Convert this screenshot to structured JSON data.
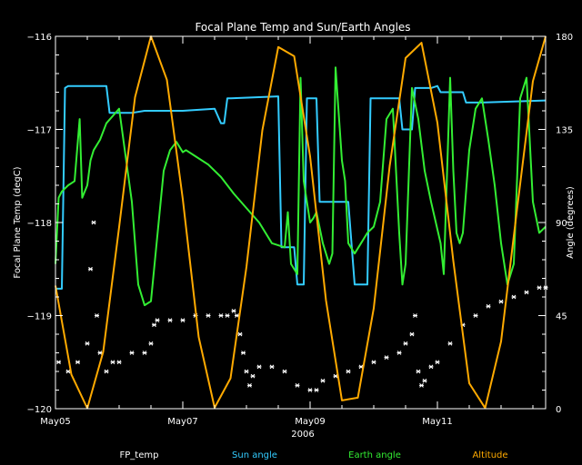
{
  "chart_data": {
    "type": "line",
    "title": "Focal Plane Temp and Sun/Earth Angles",
    "xlabel": "2006",
    "ylabel_left": "Focal Plane Temp (degC)",
    "ylabel_right": "Angle (degrees)",
    "x_unit": "days since May05 00:00",
    "xlim": [
      0,
      7.7
    ],
    "ylim_left": [
      -120,
      -116
    ],
    "ylim_right": [
      0,
      180
    ],
    "x_ticks": [
      {
        "x": 0,
        "label": "May05"
      },
      {
        "x": 2,
        "label": "May07"
      },
      {
        "x": 4,
        "label": "May09"
      },
      {
        "x": 6,
        "label": "May11"
      }
    ],
    "y_ticks_left": [
      {
        "y": -116,
        "label": "−116"
      },
      {
        "y": -117,
        "label": "−117"
      },
      {
        "y": -118,
        "label": "−118"
      },
      {
        "y": -119,
        "label": "−119"
      },
      {
        "y": -120,
        "label": "−120"
      }
    ],
    "y_ticks_right": [
      {
        "y": 180,
        "label": "180"
      },
      {
        "y": 135,
        "label": "135"
      },
      {
        "y": 90,
        "label": "90"
      },
      {
        "y": 45,
        "label": "45"
      },
      {
        "y": 0,
        "label": "0"
      }
    ],
    "legend_position": "bottom",
    "series": [
      {
        "name": "FP_temp",
        "axis": "left",
        "style": "markers",
        "color": "#ffffff",
        "x": [
          0.05,
          0.2,
          0.35,
          0.5,
          0.55,
          0.6,
          0.65,
          0.7,
          0.8,
          0.9,
          1.0,
          1.2,
          1.4,
          1.5,
          1.55,
          1.6,
          1.8,
          2.0,
          2.2,
          2.4,
          2.6,
          2.7,
          2.8,
          2.85,
          2.9,
          2.95,
          3.0,
          3.05,
          3.1,
          3.2,
          3.4,
          3.6,
          3.8,
          4.0,
          4.1,
          4.2,
          4.4,
          4.6,
          4.8,
          5.0,
          5.2,
          5.4,
          5.5,
          5.6,
          5.65,
          5.7,
          5.75,
          5.8,
          5.9,
          6.0,
          6.2,
          6.4,
          6.6,
          6.8,
          7.0,
          7.2,
          7.4,
          7.6,
          7.7
        ],
        "y": [
          -119.5,
          -119.6,
          -119.5,
          -119.3,
          -118.5,
          -118.0,
          -119.0,
          -119.4,
          -119.6,
          -119.5,
          -119.5,
          -119.4,
          -119.4,
          -119.3,
          -119.1,
          -119.05,
          -119.05,
          -119.05,
          -119.0,
          -119.0,
          -119.0,
          -119.0,
          -118.95,
          -119.0,
          -119.2,
          -119.4,
          -119.6,
          -119.75,
          -119.65,
          -119.55,
          -119.55,
          -119.6,
          -119.75,
          -119.8,
          -119.8,
          -119.7,
          -119.65,
          -119.6,
          -119.55,
          -119.5,
          -119.45,
          -119.4,
          -119.3,
          -119.2,
          -119.0,
          -119.6,
          -119.75,
          -119.7,
          -119.55,
          -119.5,
          -119.3,
          -119.1,
          -119.0,
          -118.9,
          -118.85,
          -118.8,
          -118.75,
          -118.7,
          -118.7
        ]
      },
      {
        "name": "Sun angle",
        "axis": "right",
        "style": "line",
        "color": "#33ccff",
        "x": [
          0,
          0.1,
          0.15,
          0.2,
          0.8,
          0.85,
          1.2,
          1.4,
          1.6,
          2.0,
          2.5,
          2.6,
          2.65,
          2.7,
          2.75,
          3.5,
          3.55,
          3.75,
          3.8,
          3.9,
          3.95,
          4.1,
          4.15,
          4.6,
          4.7,
          4.9,
          4.95,
          5.4,
          5.45,
          5.6,
          5.65,
          5.9,
          6.0,
          6.05,
          6.4,
          6.45,
          6.7,
          7.7
        ],
        "y": [
          58,
          58,
          155,
          156,
          156,
          143,
          143,
          144,
          144,
          144,
          145,
          138,
          138,
          150,
          150,
          151,
          78,
          78,
          60,
          60,
          150,
          150,
          100,
          100,
          60,
          60,
          150,
          150,
          135,
          135,
          155,
          155,
          156,
          153,
          153,
          148,
          148,
          149
        ]
      },
      {
        "name": "Earth angle",
        "axis": "right",
        "style": "line",
        "color": "#33ee33",
        "x": [
          0,
          0.05,
          0.1,
          0.2,
          0.3,
          0.38,
          0.42,
          0.5,
          0.55,
          0.6,
          0.7,
          0.8,
          1.0,
          1.2,
          1.3,
          1.4,
          1.5,
          1.7,
          1.8,
          1.9,
          2.0,
          2.05,
          2.2,
          2.4,
          2.6,
          2.8,
          3.0,
          3.2,
          3.4,
          3.6,
          3.65,
          3.7,
          3.8,
          3.85,
          3.9,
          4.0,
          4.05,
          4.1,
          4.2,
          4.3,
          4.35,
          4.4,
          4.5,
          4.55,
          4.6,
          4.7,
          4.8,
          4.9,
          5.0,
          5.1,
          5.2,
          5.3,
          5.4,
          5.45,
          5.5,
          5.6,
          5.7,
          5.8,
          5.9,
          6.05,
          6.1,
          6.2,
          6.25,
          6.3,
          6.35,
          6.4,
          6.5,
          6.6,
          6.7,
          6.8,
          6.9,
          7.0,
          7.1,
          7.2,
          7.3,
          7.4,
          7.5,
          7.6,
          7.7
        ],
        "y": [
          70,
          102,
          105,
          108,
          110,
          140,
          102,
          108,
          120,
          125,
          130,
          138,
          145,
          100,
          60,
          50,
          52,
          115,
          125,
          129,
          124,
          125,
          122,
          118,
          112,
          104,
          97,
          90,
          80,
          78,
          95,
          70,
          65,
          160,
          110,
          90,
          92,
          95,
          80,
          70,
          75,
          165,
          120,
          110,
          80,
          75,
          80,
          85,
          88,
          100,
          140,
          145,
          85,
          60,
          70,
          155,
          140,
          115,
          100,
          80,
          65,
          160,
          115,
          85,
          80,
          85,
          125,
          145,
          150,
          130,
          108,
          80,
          60,
          70,
          150,
          160,
          100,
          85,
          88
        ]
      },
      {
        "name": "Altitude",
        "axis": "right",
        "style": "line",
        "color": "#ffaa00",
        "x": [
          0.0,
          0.25,
          0.5,
          0.75,
          1.0,
          1.25,
          1.5,
          1.75,
          2.0,
          2.25,
          2.5,
          2.75,
          3.0,
          3.25,
          3.5,
          3.75,
          4.0,
          4.25,
          4.5,
          4.75,
          5.0,
          5.25,
          5.5,
          5.75,
          6.0,
          6.25,
          6.5,
          6.75,
          7.0,
          7.25,
          7.5,
          7.7
        ],
        "y": [
          59.5,
          16.5,
          0.2,
          27.5,
          87.8,
          150.6,
          180.0,
          159.0,
          101.3,
          34.6,
          0.5,
          14.7,
          68.5,
          134.6,
          174.8,
          170.4,
          121.9,
          52.3,
          4.0,
          5.3,
          48.6,
          117.3,
          169.5,
          176.9,
          138.2,
          71.4,
          12.3,
          0.3,
          32.5,
          96.2,
          158.3,
          180.0
        ]
      }
    ]
  }
}
